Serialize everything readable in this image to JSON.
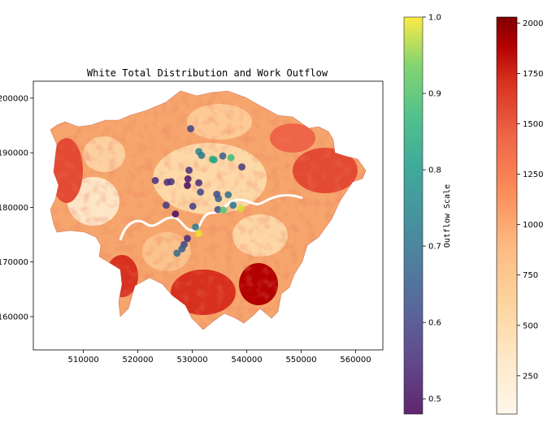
{
  "chart_data": {
    "type": "map-scatter",
    "title": "White Total Distribution and Work Outflow",
    "xlabel": "",
    "ylabel": "",
    "xlim": [
      500800,
      565000
    ],
    "ylim": [
      153900,
      203100
    ],
    "x_ticks": [
      510000,
      520000,
      530000,
      540000,
      550000,
      560000
    ],
    "y_ticks": [
      160000,
      170000,
      180000,
      190000,
      200000
    ],
    "x_tick_labels": [
      "510000",
      "520000",
      "530000",
      "540000",
      "550000",
      "560000"
    ],
    "y_tick_labels": [
      "160000",
      "170000",
      "180000",
      "190000",
      "200000"
    ],
    "outflow_colorbar": {
      "label": "Outflow Scale",
      "colormap": "viridis",
      "range": [
        0.48,
        1.0
      ],
      "ticks": [
        0.5,
        0.6,
        0.7,
        0.8,
        0.9,
        1.0
      ],
      "tick_labels": [
        "0.5",
        "0.6",
        "0.7",
        "0.8",
        "0.9",
        "1.0"
      ]
    },
    "white_total_colorbar": {
      "label": "",
      "colormap": "OrRd",
      "range": [
        60,
        2030
      ],
      "ticks": [
        250,
        500,
        750,
        1000,
        1250,
        1500,
        1750,
        2000
      ],
      "tick_labels": [
        "250",
        "500",
        "750",
        "1000",
        "1250",
        "1500",
        "1750",
        "2000"
      ]
    },
    "outflow_points": [
      {
        "x": 529700,
        "y": 194400,
        "v": 0.6
      },
      {
        "x": 531200,
        "y": 190200,
        "v": 0.75
      },
      {
        "x": 531700,
        "y": 189500,
        "v": 0.72
      },
      {
        "x": 533700,
        "y": 188800,
        "v": 0.85
      },
      {
        "x": 534000,
        "y": 188700,
        "v": 0.82
      },
      {
        "x": 535600,
        "y": 189400,
        "v": 0.65
      },
      {
        "x": 537100,
        "y": 189100,
        "v": 0.88
      },
      {
        "x": 539100,
        "y": 187400,
        "v": 0.58
      },
      {
        "x": 529400,
        "y": 186800,
        "v": 0.55
      },
      {
        "x": 523200,
        "y": 184900,
        "v": 0.55
      },
      {
        "x": 525400,
        "y": 184600,
        "v": 0.55
      },
      {
        "x": 526100,
        "y": 184700,
        "v": 0.56
      },
      {
        "x": 529200,
        "y": 185200,
        "v": 0.52
      },
      {
        "x": 529100,
        "y": 184000,
        "v": 0.5
      },
      {
        "x": 531200,
        "y": 184500,
        "v": 0.55
      },
      {
        "x": 531500,
        "y": 182800,
        "v": 0.6
      },
      {
        "x": 525200,
        "y": 180400,
        "v": 0.58
      },
      {
        "x": 526900,
        "y": 178800,
        "v": 0.5
      },
      {
        "x": 530100,
        "y": 180200,
        "v": 0.58
      },
      {
        "x": 534500,
        "y": 182400,
        "v": 0.62
      },
      {
        "x": 534800,
        "y": 181600,
        "v": 0.65
      },
      {
        "x": 536600,
        "y": 182300,
        "v": 0.7
      },
      {
        "x": 534700,
        "y": 179600,
        "v": 0.62
      },
      {
        "x": 535700,
        "y": 179500,
        "v": 0.9
      },
      {
        "x": 537500,
        "y": 180400,
        "v": 0.7
      },
      {
        "x": 538900,
        "y": 179800,
        "v": 0.98
      },
      {
        "x": 530600,
        "y": 176400,
        "v": 0.72
      },
      {
        "x": 531200,
        "y": 175200,
        "v": 0.99
      },
      {
        "x": 529100,
        "y": 174300,
        "v": 0.55
      },
      {
        "x": 528500,
        "y": 173200,
        "v": 0.6
      },
      {
        "x": 528100,
        "y": 172400,
        "v": 0.65
      },
      {
        "x": 527200,
        "y": 171600,
        "v": 0.68
      }
    ]
  }
}
